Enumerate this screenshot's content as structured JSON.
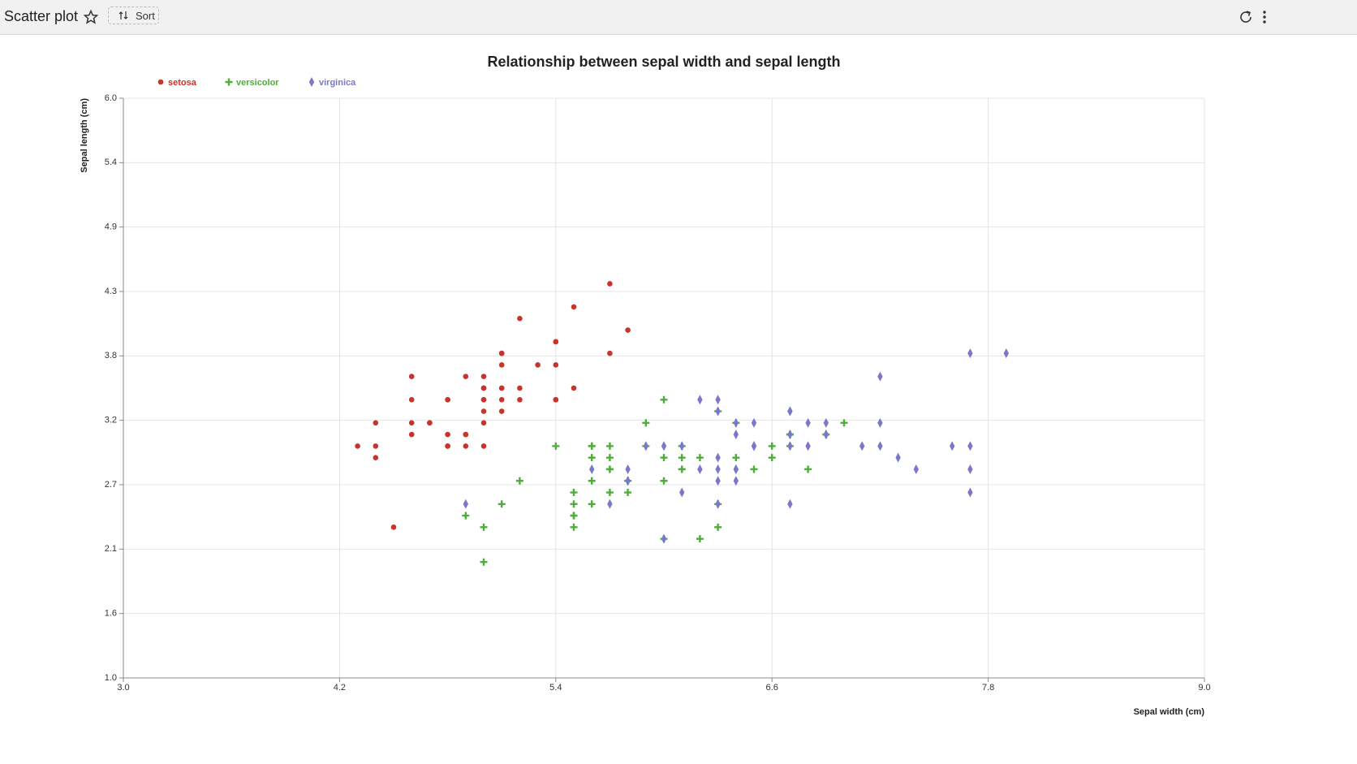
{
  "ui": {
    "title": "Scatter plot",
    "sort": "Sort"
  },
  "chart_data": {
    "type": "scatter",
    "title": "Relationship between sepal width and sepal length",
    "x_label": "Sepal width (cm)",
    "y_label": "Sepal length (cm)",
    "xlim": [
      3.0,
      9.0
    ],
    "ylim": [
      1.0,
      6.0
    ],
    "xticks": [
      {
        "value": 3.0,
        "label": "3.0"
      },
      4.2,
      5.4,
      6.6,
      7.8,
      {
        "value": 9.0,
        "label": "9.0"
      }
    ],
    "yticks": [
      {
        "value": 1.0,
        "label": "1.0"
      },
      {
        "value": 1.5556,
        "label": "1.6"
      },
      {
        "value": 2.1111,
        "label": "2.1"
      },
      {
        "value": 2.6667,
        "label": "2.7"
      },
      {
        "value": 3.2222,
        "label": "3.2"
      },
      {
        "value": 3.7778,
        "label": "3.8"
      },
      {
        "value": 4.3333,
        "label": "4.3"
      },
      {
        "value": 4.8889,
        "label": "4.9"
      },
      {
        "value": 5.4444,
        "label": "5.4"
      },
      {
        "value": 6.0,
        "label": "6.0"
      }
    ],
    "grid": true,
    "legend": "top-left",
    "series": [
      {
        "name": "setosa",
        "color": "#c8332b",
        "marker": "circle",
        "x": [
          5.1,
          4.9,
          4.7,
          4.6,
          5.0,
          5.4,
          4.6,
          5.0,
          4.4,
          4.9,
          5.4,
          4.8,
          4.8,
          4.3,
          5.8,
          5.7,
          5.4,
          5.1,
          5.7,
          5.1,
          5.4,
          5.1,
          4.6,
          5.1,
          4.8,
          5.0,
          5.0,
          5.2,
          5.2,
          4.7,
          4.8,
          5.4,
          5.2,
          5.5,
          4.9,
          5.0,
          5.5,
          4.9,
          4.4,
          5.1,
          5.0,
          4.5,
          4.4,
          5.0,
          5.1,
          4.8,
          5.1,
          4.6,
          5.3,
          5.0
        ],
        "values": [
          3.5,
          3.0,
          3.2,
          3.1,
          3.6,
          3.9,
          3.4,
          3.4,
          2.9,
          3.1,
          3.7,
          3.4,
          3.0,
          3.0,
          4.0,
          4.4,
          3.9,
          3.5,
          3.8,
          3.8,
          3.4,
          3.7,
          3.6,
          3.3,
          3.4,
          3.0,
          3.4,
          3.5,
          3.4,
          3.2,
          3.1,
          3.4,
          4.1,
          4.2,
          3.1,
          3.2,
          3.5,
          3.6,
          3.0,
          3.4,
          3.5,
          2.3,
          3.2,
          3.5,
          3.8,
          3.0,
          3.8,
          3.2,
          3.7,
          3.3
        ]
      },
      {
        "name": "versicolor",
        "color": "#4fae3b",
        "marker": "cross",
        "x": [
          7.0,
          6.4,
          6.9,
          5.5,
          6.5,
          5.7,
          6.3,
          4.9,
          6.6,
          5.2,
          5.0,
          5.9,
          6.0,
          6.1,
          5.6,
          6.7,
          5.6,
          5.8,
          6.2,
          5.6,
          5.9,
          6.1,
          6.3,
          6.1,
          6.4,
          6.6,
          6.8,
          6.7,
          6.0,
          5.7,
          5.5,
          5.5,
          5.8,
          6.0,
          5.4,
          6.0,
          6.7,
          6.3,
          5.6,
          5.5,
          5.5,
          6.1,
          5.8,
          5.0,
          5.6,
          5.7,
          5.7,
          6.2,
          5.1,
          5.7
        ],
        "values": [
          3.2,
          3.2,
          3.1,
          2.3,
          2.8,
          2.8,
          3.3,
          2.4,
          2.9,
          2.7,
          2.0,
          3.0,
          2.2,
          2.9,
          2.9,
          3.1,
          3.0,
          2.7,
          2.2,
          2.5,
          3.2,
          2.8,
          2.5,
          2.8,
          2.9,
          3.0,
          2.8,
          3.0,
          2.9,
          2.6,
          2.4,
          2.4,
          2.7,
          2.7,
          3.0,
          3.4,
          3.1,
          2.3,
          3.0,
          2.5,
          2.6,
          3.0,
          2.6,
          2.3,
          2.7,
          3.0,
          2.9,
          2.9,
          2.5,
          2.8
        ]
      },
      {
        "name": "virginica",
        "color": "#7b78cc",
        "marker": "diamond",
        "x": [
          6.3,
          5.8,
          7.1,
          6.3,
          6.5,
          7.6,
          4.9,
          7.3,
          6.7,
          7.2,
          6.5,
          6.4,
          6.8,
          5.7,
          5.8,
          6.4,
          6.5,
          7.7,
          7.7,
          6.0,
          6.9,
          5.6,
          7.7,
          6.3,
          6.7,
          7.2,
          6.2,
          6.1,
          6.4,
          7.2,
          7.4,
          7.9,
          6.4,
          6.3,
          6.1,
          7.7,
          6.3,
          6.4,
          6.0,
          6.9,
          6.7,
          6.9,
          5.8,
          6.8,
          6.7,
          6.7,
          6.3,
          6.5,
          6.2,
          5.9
        ],
        "values": [
          3.3,
          2.7,
          3.0,
          2.9,
          3.0,
          3.0,
          2.5,
          2.9,
          2.5,
          3.6,
          3.2,
          2.7,
          3.0,
          2.5,
          2.8,
          3.2,
          3.0,
          3.8,
          2.6,
          2.2,
          3.2,
          2.8,
          2.8,
          2.7,
          3.3,
          3.2,
          2.8,
          3.0,
          2.8,
          3.0,
          2.8,
          3.8,
          2.8,
          2.8,
          2.6,
          3.0,
          3.4,
          3.1,
          3.0,
          3.1,
          3.1,
          3.1,
          2.7,
          3.2,
          3.3,
          3.0,
          2.5,
          3.0,
          3.4,
          3.0
        ]
      }
    ]
  }
}
